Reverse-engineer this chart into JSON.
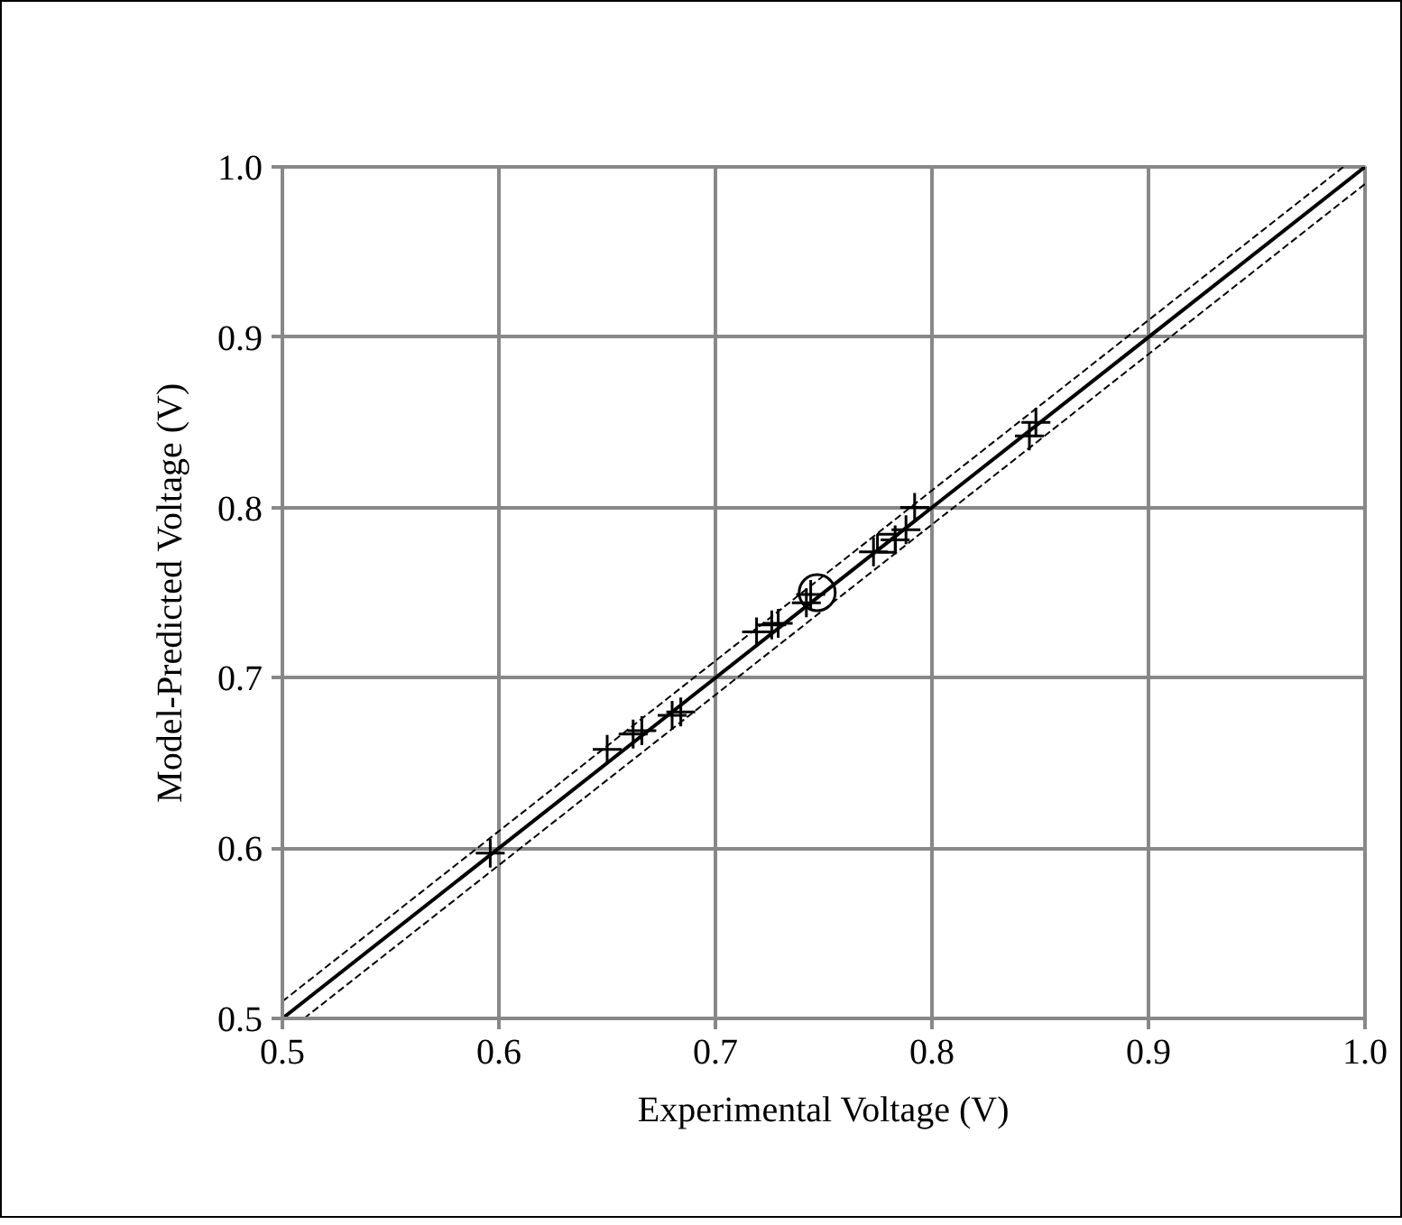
{
  "chart_data": {
    "type": "scatter",
    "xlabel": "Experimental Voltage (V)",
    "ylabel": "Model-Predicted Voltage (V)",
    "xlim": [
      0.5,
      1.0
    ],
    "ylim": [
      0.5,
      1.0
    ],
    "xticks": [
      {
        "value": 0.5,
        "label": "0.5"
      },
      {
        "value": 0.6,
        "label": "0.6"
      },
      {
        "value": 0.7,
        "label": "0.7"
      },
      {
        "value": 0.8,
        "label": "0.8"
      },
      {
        "value": 0.9,
        "label": "0.9"
      },
      {
        "value": 1.0,
        "label": "1.0"
      }
    ],
    "yticks": [
      {
        "value": 0.5,
        "label": "0.5"
      },
      {
        "value": 0.6,
        "label": "0.6"
      },
      {
        "value": 0.7,
        "label": "0.7"
      },
      {
        "value": 0.8,
        "label": "0.8"
      },
      {
        "value": 0.9,
        "label": "0.9"
      },
      {
        "value": 1.0,
        "label": "1.0"
      }
    ],
    "grid": true,
    "series": [
      {
        "type": "line",
        "color": "#000000",
        "line_style": "solid",
        "x": [
          0.5,
          1.0
        ],
        "values": [
          0.5,
          1.0
        ]
      },
      {
        "type": "line",
        "color": "#000000",
        "line_style": "dashed",
        "x": [
          0.5,
          0.99
        ],
        "values": [
          0.51,
          1.0
        ]
      },
      {
        "type": "line",
        "color": "#000000",
        "line_style": "dashed",
        "x": [
          0.51,
          1.0
        ],
        "values": [
          0.5,
          0.99
        ]
      },
      {
        "color": "#000000",
        "marker": "cross",
        "x": [
          0.596,
          0.65,
          0.662,
          0.666,
          0.68,
          0.684,
          0.719,
          0.726,
          0.729,
          0.742,
          0.744,
          0.773,
          0.783,
          0.788,
          0.792,
          0.845,
          0.848
        ],
        "values": [
          0.597,
          0.658,
          0.667,
          0.669,
          0.678,
          0.68,
          0.727,
          0.731,
          0.732,
          0.744,
          0.749,
          0.774,
          0.781,
          0.787,
          0.8,
          0.842,
          0.85
        ]
      },
      {
        "color": "#000000",
        "marker": "circle",
        "x": [
          0.747
        ],
        "values": [
          0.75
        ]
      },
      {
        "color": "#000000",
        "marker": "square",
        "x": [
          0.779
        ],
        "values": [
          0.779
        ]
      }
    ]
  }
}
